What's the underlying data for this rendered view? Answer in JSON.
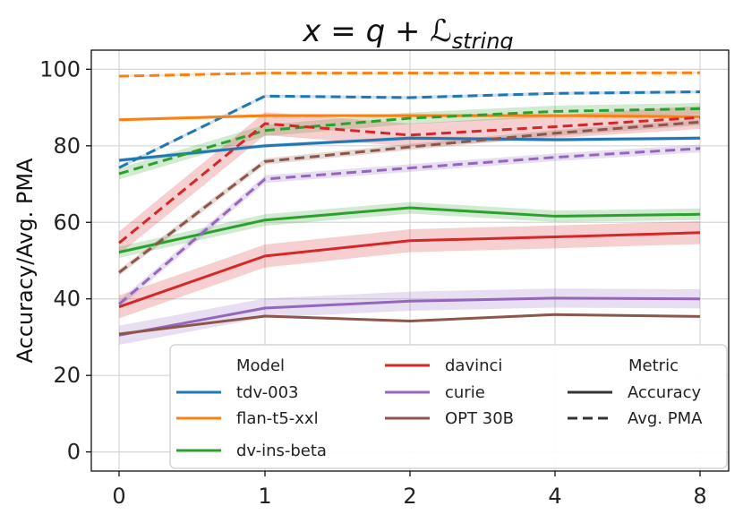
{
  "chart_data": {
    "type": "line",
    "title_parts": {
      "lhs": "x",
      "eq": " = ",
      "q": "q",
      "plus": " + ",
      "L": "ℒ",
      "sub": "string"
    },
    "xlabel": "",
    "ylabel": "Accuracy/Avg. PMA",
    "categories": [
      "0",
      "1",
      "2",
      "4",
      "8"
    ],
    "ylim": [
      -5,
      105
    ],
    "yticks": [
      0,
      20,
      40,
      60,
      80,
      100
    ],
    "grid": true,
    "legend": {
      "placement": "lower-right",
      "model_title": "Model",
      "metric_title": "Metric",
      "models": [
        {
          "name": "tdv-003",
          "color": "#1f77b4"
        },
        {
          "name": "flan-t5-xxl",
          "color": "#ff7f0e"
        },
        {
          "name": "dv-ins-beta",
          "color": "#2ca02c"
        },
        {
          "name": "davinci",
          "color": "#d62728"
        },
        {
          "name": "curie",
          "color": "#9467bd"
        },
        {
          "name": "OPT 30B",
          "color": "#8c564b"
        }
      ],
      "metrics": [
        {
          "name": "Accuracy",
          "style": "solid"
        },
        {
          "name": "Avg. PMA",
          "style": "dashed"
        }
      ]
    },
    "series": [
      {
        "model": "tdv-003",
        "metric": "Accuracy",
        "color": "#1f77b4",
        "values": [
          76.2,
          80.0,
          82.0,
          81.6,
          82.0
        ],
        "band": 0.5
      },
      {
        "model": "tdv-003",
        "metric": "Avg. PMA",
        "color": "#1f77b4",
        "values": [
          74.3,
          93.0,
          92.6,
          93.7,
          94.1
        ],
        "band": 0.4
      },
      {
        "model": "flan-t5-xxl",
        "metric": "Accuracy",
        "color": "#ff7f0e",
        "values": [
          86.8,
          87.9,
          87.9,
          87.9,
          87.6
        ],
        "band": 0.4
      },
      {
        "model": "flan-t5-xxl",
        "metric": "Avg. PMA",
        "color": "#ff7f0e",
        "values": [
          98.2,
          99.0,
          99.0,
          99.0,
          99.1
        ],
        "band": 0.3
      },
      {
        "model": "dv-ins-beta",
        "metric": "Accuracy",
        "color": "#2ca02c",
        "values": [
          52.2,
          60.6,
          63.8,
          61.6,
          62.1
        ],
        "band": 1.5
      },
      {
        "model": "dv-ins-beta",
        "metric": "Avg. PMA",
        "color": "#2ca02c",
        "values": [
          72.7,
          84.0,
          87.2,
          89.0,
          89.7
        ],
        "band": 1.5
      },
      {
        "model": "davinci",
        "metric": "Accuracy",
        "color": "#d62728",
        "values": [
          37.9,
          51.2,
          55.2,
          56.2,
          57.3
        ],
        "band": 3.0
      },
      {
        "model": "davinci",
        "metric": "Avg. PMA",
        "color": "#d62728",
        "values": [
          54.6,
          85.8,
          82.8,
          85.0,
          87.4
        ],
        "band": 3.0
      },
      {
        "model": "curie",
        "metric": "Accuracy",
        "color": "#9467bd",
        "values": [
          30.5,
          37.6,
          39.4,
          40.2,
          40.0
        ],
        "band": 2.5
      },
      {
        "model": "curie",
        "metric": "Avg. PMA",
        "color": "#9467bd",
        "values": [
          38.6,
          71.3,
          74.2,
          77.0,
          79.3
        ],
        "band": 1.0
      },
      {
        "model": "OPT 30B",
        "metric": "Accuracy",
        "color": "#8c564b",
        "values": [
          30.8,
          35.5,
          34.2,
          35.9,
          35.4
        ],
        "band": 0.3
      },
      {
        "model": "OPT 30B",
        "metric": "Avg. PMA",
        "color": "#8c564b",
        "values": [
          46.9,
          75.9,
          79.7,
          83.3,
          86.2
        ],
        "band": 0.8
      }
    ]
  }
}
